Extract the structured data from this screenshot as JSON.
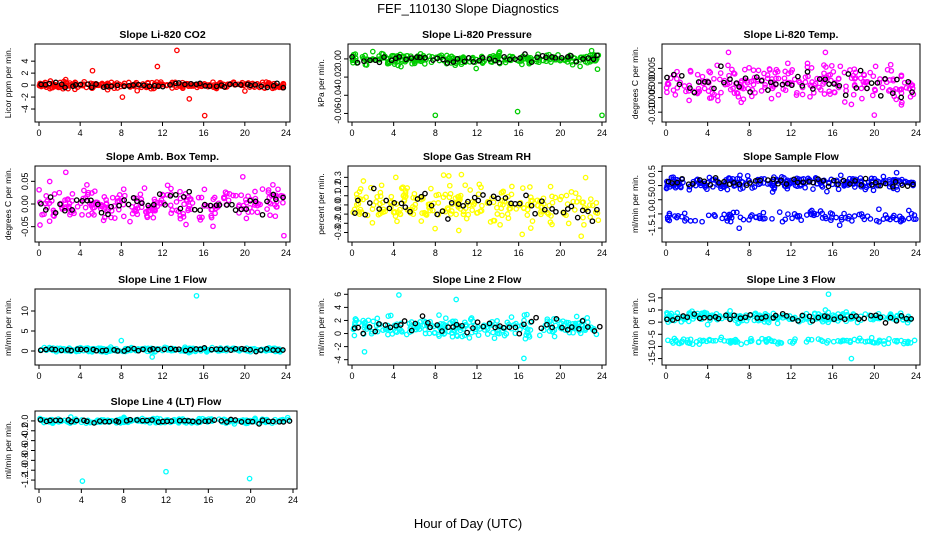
{
  "figure": {
    "title": "FEF_110130  Slope Diagnostics",
    "xlabel": "Hour of Day (UTC)"
  },
  "chart_data": [
    {
      "id": "co2",
      "type": "scatter",
      "title": "Slope Li-820 CO2",
      "ylabel": "Licor ppm per min.",
      "color": "#ff0000",
      "xlim": [
        0,
        24
      ],
      "ylim": [
        -5.5,
        6.2
      ],
      "xticks": [
        0,
        4,
        8,
        12,
        16,
        20,
        24
      ],
      "yticks": [
        -4,
        -2,
        0,
        2,
        4
      ],
      "ytick_labels": [
        "-4",
        "-2",
        "0",
        "2",
        "4"
      ],
      "base": 0,
      "spread": 0.35,
      "outliers": [
        [
          13.4,
          5.8
        ],
        [
          16.1,
          -5.1
        ],
        [
          8.1,
          -2.0
        ],
        [
          11.5,
          3.1
        ],
        [
          14.6,
          -2.3
        ],
        [
          5.2,
          2.4
        ]
      ],
      "neg_band": null
    },
    {
      "id": "pressure",
      "type": "scatter",
      "title": "Slope Li-820 Pressure",
      "ylabel": "kPa per min.",
      "color": "#00cc00",
      "xlim": [
        0,
        24
      ],
      "ylim": [
        -0.065,
        0.012
      ],
      "xticks": [
        0,
        4,
        8,
        12,
        16,
        20,
        24
      ],
      "yticks": [
        -0.06,
        -0.04,
        -0.02,
        0.0
      ],
      "ytick_labels": [
        "-0.06",
        "-0.04",
        "-0.02",
        "0.00"
      ],
      "base": 0,
      "spread": 0.004,
      "outliers": [
        [
          8.0,
          -0.062
        ],
        [
          15.9,
          -0.058
        ],
        [
          24.0,
          -0.062
        ],
        [
          23.0,
          0.009
        ],
        [
          2.0,
          0.008
        ]
      ],
      "neg_band": null
    },
    {
      "id": "temp",
      "type": "scatter",
      "title": "Slope Li-820 Temp.",
      "ylabel": "degrees C per min.",
      "color": "#ff00ff",
      "xlim": [
        0,
        24
      ],
      "ylim": [
        -0.012,
        0.012
      ],
      "xticks": [
        0,
        4,
        8,
        12,
        16,
        20,
        24
      ],
      "yticks": [
        -0.01,
        -0.005,
        0.0,
        0.005
      ],
      "ytick_labels": [
        "-0.010",
        "-0.005",
        "0.000",
        "0.005"
      ],
      "base": 0,
      "spread": 0.004,
      "outliers": [
        [
          6.0,
          0.0105
        ],
        [
          15.3,
          0.0105
        ],
        [
          20.0,
          -0.011
        ]
      ],
      "neg_band": null
    },
    {
      "id": "ambbox",
      "type": "scatter",
      "title": "Slope Amb. Box Temp.",
      "ylabel": "degrees C per min.",
      "color": "#ff00ff",
      "xlim": [
        0,
        24
      ],
      "ylim": [
        -0.075,
        0.075
      ],
      "xticks": [
        0,
        4,
        8,
        12,
        16,
        20,
        24
      ],
      "yticks": [
        -0.05,
        0.0,
        0.05
      ],
      "ytick_labels": [
        "-0.05",
        "0.00",
        "0.05"
      ],
      "base": 0,
      "spread": 0.024,
      "outliers": [
        [
          2.6,
          0.07
        ],
        [
          23.8,
          -0.07
        ],
        [
          19.8,
          0.06
        ]
      ],
      "neg_band": null
    },
    {
      "id": "rh",
      "type": "scatter",
      "title": "Slope Gas Stream RH",
      "ylabel": "percent per min.",
      "color": "#ffff00",
      "xlim": [
        0,
        24
      ],
      "ylim": [
        -0.36,
        0.38
      ],
      "xticks": [
        0,
        4,
        8,
        12,
        16,
        20,
        24
      ],
      "yticks": [
        -0.3,
        -0.2,
        -0.1,
        0.0,
        0.1,
        0.2,
        0.3
      ],
      "ytick_labels": [
        "-0.3",
        "-0.2",
        "-0.1",
        "0.0",
        "0.1",
        "0.2",
        "0.3"
      ],
      "base": 0,
      "spread": 0.12,
      "outliers": [
        [
          22.0,
          -0.34
        ],
        [
          4.2,
          0.3
        ],
        [
          10.5,
          0.33
        ]
      ],
      "neg_band": null
    },
    {
      "id": "sample",
      "type": "scatter",
      "title": "Slope Sample Flow",
      "ylabel": "ml/min per min.",
      "color": "#0000ff",
      "xlim": [
        0,
        24
      ],
      "ylim": [
        -1.85,
        0.55
      ],
      "xticks": [
        0,
        4,
        8,
        12,
        16,
        20,
        24
      ],
      "yticks": [
        -1.5,
        -1.0,
        -0.5,
        0.0,
        0.5
      ],
      "ytick_labels": [
        "-1.5",
        "-1.0",
        "-0.5",
        "0.0",
        "0.5"
      ],
      "base": 0.1,
      "spread": 0.14,
      "outliers": [],
      "neg_band": [
        -1.15,
        0.25
      ]
    },
    {
      "id": "line1",
      "type": "scatter",
      "title": "Slope Line 1 Flow",
      "ylabel": "ml/min per min.",
      "color": "#00ffff",
      "xlim": [
        0,
        24
      ],
      "ylim": [
        -2.5,
        14.5
      ],
      "xticks": [
        0,
        4,
        8,
        12,
        16,
        20,
        24
      ],
      "yticks": [
        0,
        5,
        10
      ],
      "ytick_labels": [
        "0",
        "5",
        "10"
      ],
      "base": 0.3,
      "spread": 0.35,
      "outliers": [
        [
          15.3,
          13.8
        ],
        [
          8.0,
          2.6
        ],
        [
          11.0,
          -1.5
        ]
      ],
      "neg_band": null
    },
    {
      "id": "line2",
      "type": "scatter",
      "title": "Slope Line 2 Flow",
      "ylabel": "ml/min per min.",
      "color": "#00ffff",
      "xlim": [
        0,
        24
      ],
      "ylim": [
        -4.2,
        6.2
      ],
      "xticks": [
        0,
        4,
        8,
        12,
        16,
        20,
        24
      ],
      "yticks": [
        -4,
        -2,
        0,
        2,
        4,
        6
      ],
      "ytick_labels": [
        "-4",
        "-2",
        "0",
        "2",
        "4",
        "6"
      ],
      "base": 1.0,
      "spread": 1.0,
      "outliers": [
        [
          4.5,
          5.9
        ],
        [
          1.2,
          -2.8
        ],
        [
          16.5,
          -3.8
        ],
        [
          10.0,
          5.2
        ]
      ],
      "neg_band": null
    },
    {
      "id": "line3",
      "type": "scatter",
      "title": "Slope Line 3 Flow",
      "ylabel": "ml/min per min.",
      "color": "#00ffff",
      "xlim": [
        0,
        24
      ],
      "ylim": [
        -16,
        12
      ],
      "xticks": [
        0,
        4,
        8,
        12,
        16,
        20,
        24
      ],
      "yticks": [
        -15,
        -10,
        -5,
        0,
        5,
        10
      ],
      "ytick_labels": [
        "-15",
        "-10",
        "-5",
        "0",
        "5",
        "10"
      ],
      "base": 2.0,
      "spread": 1.3,
      "outliers": [
        [
          15.6,
          11.5
        ],
        [
          17.8,
          -15.0
        ]
      ],
      "neg_band": [
        -8.0,
        1.3
      ]
    },
    {
      "id": "line4",
      "type": "scatter",
      "title": "Slope Line 4 (LT) Flow",
      "ylabel": "ml/min per min.",
      "color": "#00ffff",
      "xlim": [
        0,
        24
      ],
      "ylim": [
        -1.3,
        0.12
      ],
      "xticks": [
        0,
        4,
        8,
        12,
        16,
        20,
        24
      ],
      "yticks": [
        -1.2,
        -1.0,
        -0.8,
        -0.6,
        -0.4,
        -0.2,
        0.0
      ],
      "ytick_labels": [
        "-1.2",
        "-1.0",
        "-0.8",
        "-0.6",
        "-0.4",
        "-0.2",
        "0.0"
      ],
      "base": 0.0,
      "spread": 0.03,
      "outliers": [
        [
          4.1,
          -1.22
        ],
        [
          12.0,
          -1.03
        ],
        [
          19.9,
          -1.17
        ],
        [
          3.0,
          0.08
        ]
      ],
      "neg_band": null
    }
  ]
}
